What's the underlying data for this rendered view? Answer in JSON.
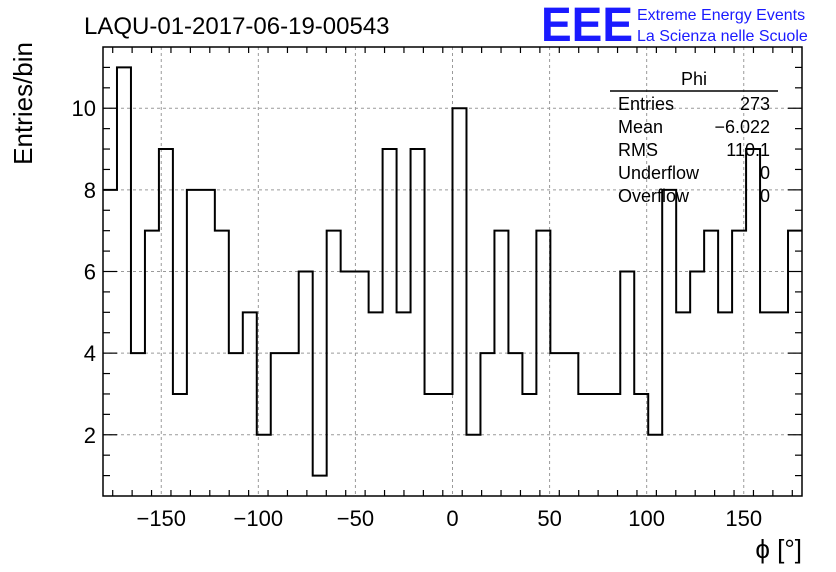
{
  "chart_data": {
    "type": "bar",
    "style": "step-histogram",
    "title": "LAQU-01-2017-06-19-00543",
    "xlabel": "ϕ [°]",
    "ylabel": "Entries/bin",
    "xlim": [
      -180,
      180
    ],
    "ylim": [
      0.5,
      11.5
    ],
    "bin_width": 7.2,
    "x_ticks": [
      -150,
      -100,
      -50,
      0,
      50,
      100,
      150
    ],
    "x_tick_labels": [
      "−150",
      "−100",
      "−50",
      "0",
      "50",
      "100",
      "150"
    ],
    "y_ticks": [
      2,
      4,
      6,
      8,
      10
    ],
    "y_tick_labels": [
      "2",
      "4",
      "6",
      "8",
      "10"
    ],
    "grid": true,
    "legend": "none",
    "line_color": "#000000",
    "values": [
      8,
      11,
      4,
      7,
      9,
      3,
      8,
      8,
      7,
      4,
      5,
      2,
      4,
      4,
      6,
      1,
      7,
      6,
      6,
      5,
      9,
      5,
      9,
      3,
      3,
      10,
      2,
      4,
      7,
      4,
      3,
      7,
      4,
      4,
      3,
      3,
      3,
      6,
      3,
      2,
      8,
      5,
      6,
      7,
      5,
      7,
      9,
      5,
      5,
      7
    ],
    "stats_box": {
      "title": "Phi",
      "rows": [
        {
          "label": "Entries",
          "value": "273"
        },
        {
          "label": "Mean",
          "value": "−6.022"
        },
        {
          "label": "RMS",
          "value": "110.1"
        },
        {
          "label": "Underflow",
          "value": "0"
        },
        {
          "label": "Overflow",
          "value": "0"
        }
      ]
    }
  },
  "logo": {
    "mark": "EEE",
    "line1": "Extreme Energy Events",
    "line2": "La Scienza nelle Scuole",
    "color": "#1a1aff"
  }
}
